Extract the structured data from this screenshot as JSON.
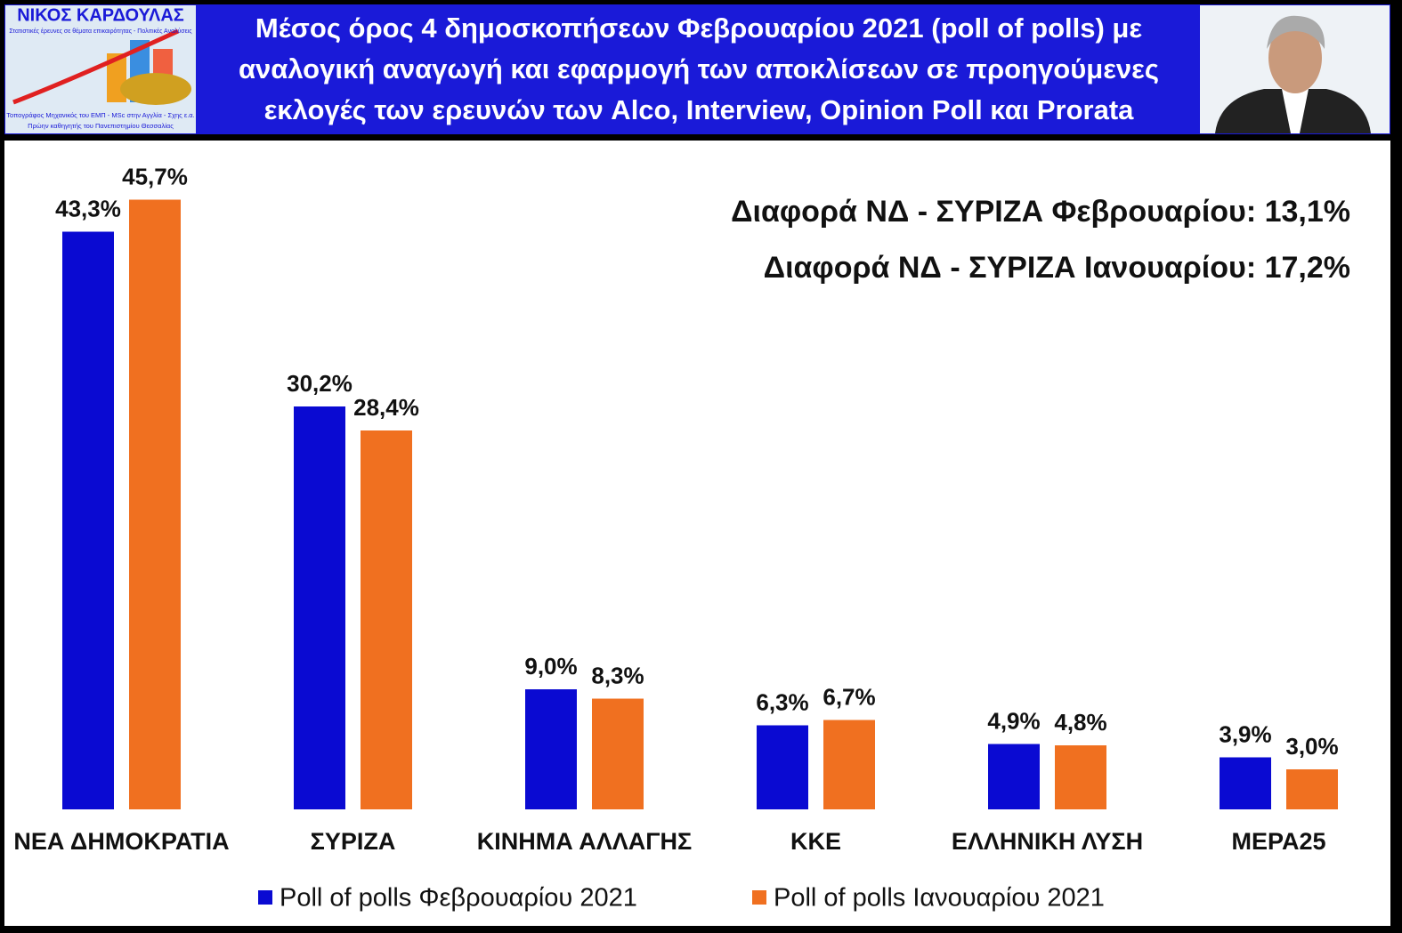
{
  "header": {
    "logo_name": "ΝΙΚΟΣ ΚΑΡΔΟΥΛΑΣ",
    "logo_tagline": "Στατιστικές έρευνες σε θέματα επικαιρότητας - Πολιτικές Αναλύσεις",
    "logo_footer": [
      "Τοπογράφος Μηχανικός του ΕΜΠ - MSc στην Αγγλία - Σχης ε.α.",
      "Πρώην καθηγητής του Πανεπιστημίου Θεσσαλίας"
    ]
  },
  "chart_data": {
    "type": "bar",
    "title": [
      "Μέσος όρος 4  δημοσκοπήσεων  Φεβρουαρίου  2021 (poll of polls) με",
      "αναλογική αναγωγή και εφαρμογή των αποκλίσεων σε προηγούμενες",
      "εκλογές των ερευνών των  Alco,  Interview,  Opinion Poll  και  Prorata"
    ],
    "annotations": [
      "Διαφορά ΝΔ - ΣΥΡΙΖΑ Φεβρουαρίου: 13,1%",
      "Διαφορά  ΝΔ  -  ΣΥΡΙΖΑ  Ιανουαρίου: 17,2%"
    ],
    "categories": [
      "ΝΕΑ ΔΗΜΟΚΡΑΤΙΑ",
      "ΣΥΡΙΖΑ",
      "ΚΙΝΗΜΑ ΑΛΛΑΓΗΣ",
      "ΚΚΕ",
      "ΕΛΛΗΝΙΚΗ ΛΥΣΗ",
      "ΜΕΡΑ25"
    ],
    "series": [
      {
        "name": "Poll of polls Φεβρουαρίου 2021",
        "color": "#0a0ad2",
        "values": [
          43.3,
          30.2,
          9.0,
          6.3,
          4.9,
          3.9
        ],
        "value_labels": [
          "43,3%",
          "30,2%",
          "9,0%",
          "6,3%",
          "4,9%",
          "3,9%"
        ]
      },
      {
        "name": "Poll of polls Ιανουαρίου 2021",
        "color": "#f07020",
        "values": [
          45.7,
          28.4,
          8.3,
          6.7,
          4.8,
          3.0
        ],
        "value_labels": [
          "45,7%",
          "28,4%",
          "8,3%",
          "6,7%",
          "4,8%",
          "3,0%"
        ]
      }
    ],
    "legend": "bottom"
  }
}
